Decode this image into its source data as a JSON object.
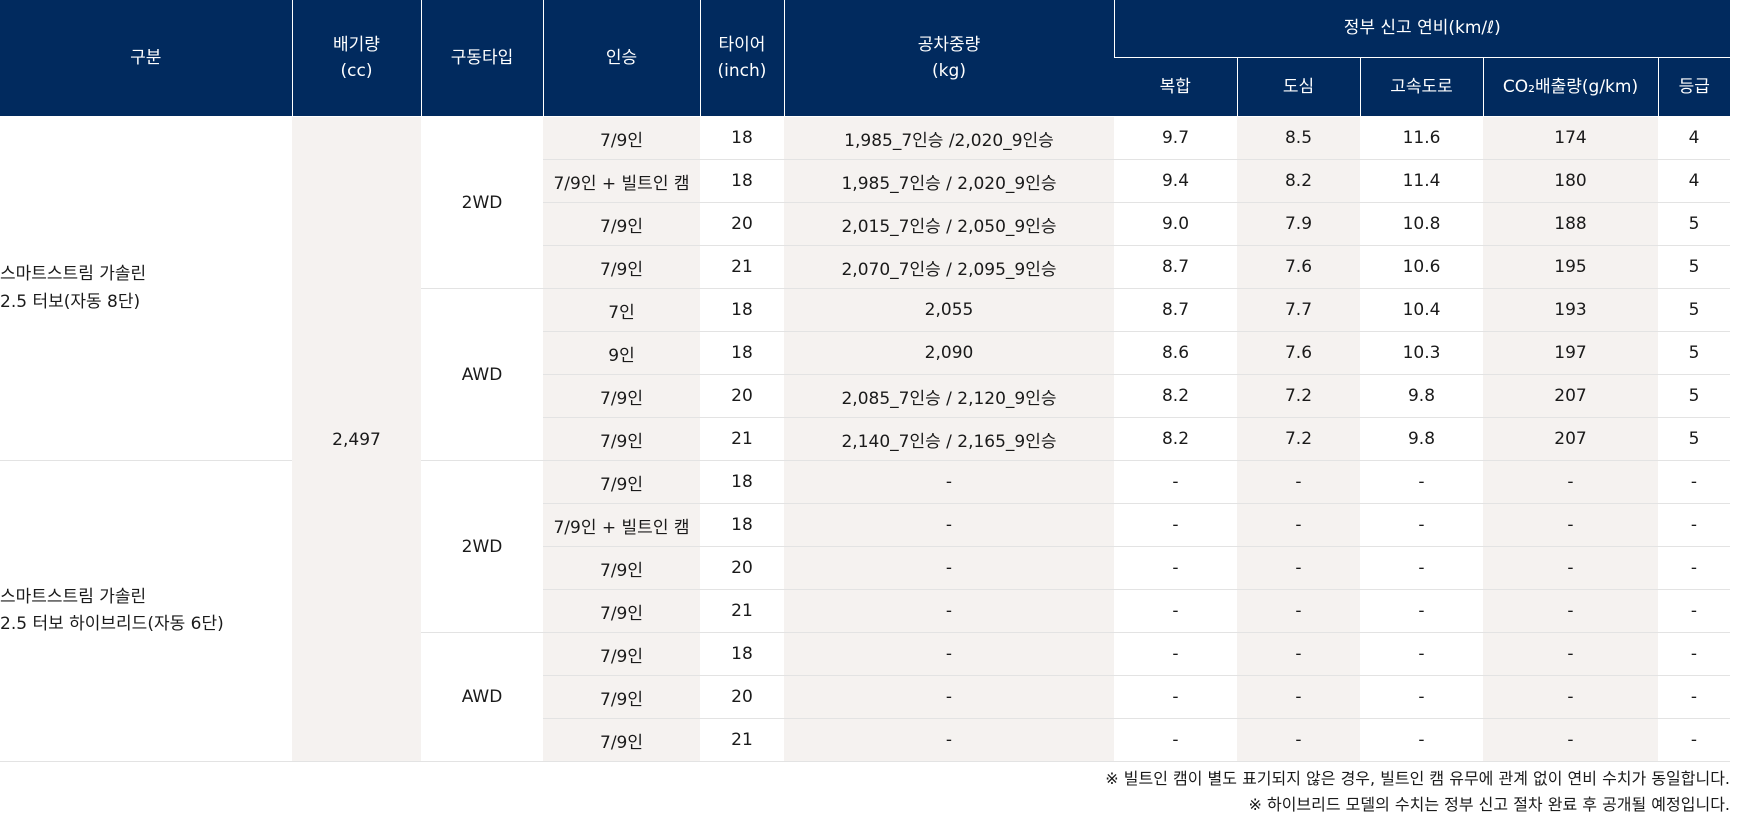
{
  "header": {
    "col_group": "구분",
    "col_displacement": "배기량\n(cc)",
    "col_drive": "구동타입",
    "col_seats": "인승",
    "col_tire": "타이어\n(inch)",
    "col_weight": "공차중량\n(kg)",
    "col_fuel_group": "정부 신고 연비(km/ℓ)",
    "col_combined": "복합",
    "col_city": "도심",
    "col_highway": "고속도로",
    "col_co2": "CO₂배출량(g/km)",
    "col_grade": "등급"
  },
  "groups": [
    {
      "name": "스마트스트림 가솔린\n2.5 터보(자동 8단)",
      "drives": [
        {
          "drive": "2WD",
          "rows": [
            {
              "seats": "7/9인",
              "tire": "18",
              "weight": "1,985_7인승  /2,020_9인승",
              "combined": "9.7",
              "city": "8.5",
              "highway": "11.6",
              "co2": "174",
              "grade": "4"
            },
            {
              "seats": "7/9인 + 빌트인 캠",
              "tire": "18",
              "weight": "1,985_7인승 / 2,020_9인승",
              "combined": "9.4",
              "city": "8.2",
              "highway": "11.4",
              "co2": "180",
              "grade": "4"
            },
            {
              "seats": "7/9인",
              "tire": "20",
              "weight": "2,015_7인승 / 2,050_9인승",
              "combined": "9.0",
              "city": "7.9",
              "highway": "10.8",
              "co2": "188",
              "grade": "5"
            },
            {
              "seats": "7/9인",
              "tire": "21",
              "weight": "2,070_7인승 / 2,095_9인승",
              "combined": "8.7",
              "city": "7.6",
              "highway": "10.6",
              "co2": "195",
              "grade": "5"
            }
          ]
        },
        {
          "drive": "AWD",
          "rows": [
            {
              "seats": "7인",
              "tire": "18",
              "weight": "2,055",
              "combined": "8.7",
              "city": "7.7",
              "highway": "10.4",
              "co2": "193",
              "grade": "5"
            },
            {
              "seats": "9인",
              "tire": "18",
              "weight": "2,090",
              "combined": "8.6",
              "city": "7.6",
              "highway": "10.3",
              "co2": "197",
              "grade": "5"
            },
            {
              "seats": "7/9인",
              "tire": "20",
              "weight": "2,085_7인승 / 2,120_9인승",
              "combined": "8.2",
              "city": "7.2",
              "highway": "9.8",
              "co2": "207",
              "grade": "5"
            },
            {
              "seats": "7/9인",
              "tire": "21",
              "weight": "2,140_7인승 / 2,165_9인승",
              "combined": "8.2",
              "city": "7.2",
              "highway": "9.8",
              "co2": "207",
              "grade": "5"
            }
          ]
        }
      ]
    },
    {
      "name": "스마트스트림 가솔린\n2.5 터보 하이브리드(자동 6단)",
      "drives": [
        {
          "drive": "2WD",
          "rows": [
            {
              "seats": "7/9인",
              "tire": "18",
              "weight": "-",
              "combined": "-",
              "city": "-",
              "highway": "-",
              "co2": "-",
              "grade": "-"
            },
            {
              "seats": "7/9인 + 빌트인 캠",
              "tire": "18",
              "weight": "-",
              "combined": "-",
              "city": "-",
              "highway": "-",
              "co2": "-",
              "grade": "-"
            },
            {
              "seats": "7/9인",
              "tire": "20",
              "weight": "-",
              "combined": "-",
              "city": "-",
              "highway": "-",
              "co2": "-",
              "grade": "-"
            },
            {
              "seats": "7/9인",
              "tire": "21",
              "weight": "-",
              "combined": "-",
              "city": "-",
              "highway": "-",
              "co2": "-",
              "grade": "-"
            }
          ]
        },
        {
          "drive": "AWD",
          "rows": [
            {
              "seats": "7/9인",
              "tire": "18",
              "weight": "-",
              "combined": "-",
              "city": "-",
              "highway": "-",
              "co2": "-",
              "grade": "-"
            },
            {
              "seats": "7/9인",
              "tire": "20",
              "weight": "-",
              "combined": "-",
              "city": "-",
              "highway": "-",
              "co2": "-",
              "grade": "-"
            },
            {
              "seats": "7/9인",
              "tire": "21",
              "weight": "-",
              "combined": "-",
              "city": "-",
              "highway": "-",
              "co2": "-",
              "grade": "-"
            }
          ]
        }
      ]
    }
  ],
  "displacement": "2,497",
  "notes": [
    "※ 빌트인 캠이 별도 표기되지 않은 경우, 빌트인 캠 유무에 관계 없이 연비 수치가 동일합니다.",
    "※ 하이브리드 모델의 수치는 정부 신고 절차 완료 후 공개될 예정입니다."
  ],
  "colors": {
    "header_bg": "#012a5e",
    "shade": "#f5f2f0"
  }
}
